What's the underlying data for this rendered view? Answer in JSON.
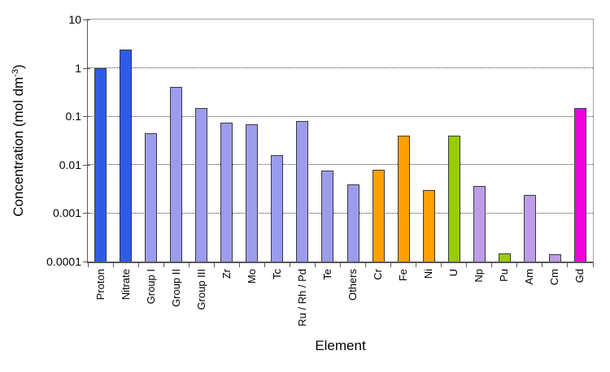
{
  "chart_data": {
    "type": "bar",
    "title": "",
    "xlabel": "Element",
    "ylabel": "Concentration (mol dm^-3)",
    "ylabel_main": "Concentration (mol dm",
    "ylabel_sup": "-3",
    "ylabel_close": ")",
    "yscale": "log",
    "ylim": [
      0.0001,
      10
    ],
    "ytick_labels": [
      "10",
      "1",
      "0.1",
      "0.01",
      "0.001",
      "0.0001"
    ],
    "ytick_values": [
      10,
      1,
      0.1,
      0.01,
      0.001,
      0.0001
    ],
    "gridline_values": [
      1,
      0.1,
      0.01,
      0.001
    ],
    "grid": "horizontal dotted",
    "legend_position": "none",
    "categories": [
      "Proton",
      "Nitrate",
      "Group I",
      "Group II",
      "Group III",
      "Zr",
      "Mo",
      "Tc",
      "Ru / Rh / Pd",
      "Te",
      "Others",
      "Cr",
      "Fe",
      "Ni",
      "U",
      "Np",
      "Pu",
      "Am",
      "Cm",
      "Gd"
    ],
    "values": [
      1.0,
      2.4,
      0.045,
      0.4,
      0.15,
      0.075,
      0.068,
      0.016,
      0.08,
      0.0075,
      0.004,
      0.008,
      0.04,
      0.003,
      0.04,
      0.0037,
      0.00015,
      0.0024,
      0.00014,
      0.15
    ],
    "bar_colors": [
      "#2E5CE8",
      "#2E5CE8",
      "#9C9CEE",
      "#9C9CEE",
      "#9C9CEE",
      "#9C9CEE",
      "#9C9CEE",
      "#9C9CEE",
      "#9C9CEE",
      "#9C9CEE",
      "#9C9CEE",
      "#FFA000",
      "#FFA000",
      "#FFA000",
      "#99CC00",
      "#BD9CE8",
      "#99CC00",
      "#BD9CE8",
      "#BD9CE8",
      "#F100DC"
    ],
    "bar_border_color": "#3A3A3A",
    "colors": {
      "blue": "#2E5CE8",
      "periwinkle": "#9C9CEE",
      "orange": "#FFA000",
      "green": "#99CC00",
      "lilac": "#BD9CE8",
      "magenta": "#F100DC"
    }
  }
}
